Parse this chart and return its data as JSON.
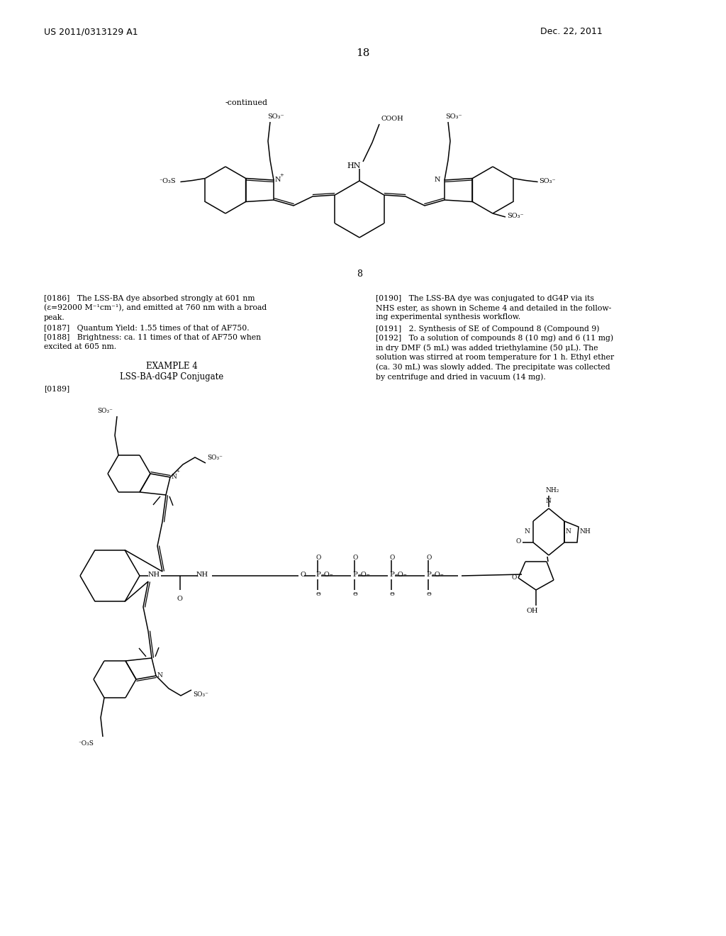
{
  "patent_number": "US 2011/0313129 A1",
  "patent_date": "Dec. 22, 2011",
  "page_number": "18",
  "continued": "-continued",
  "compound8": "8",
  "example_header": "EXAMPLE 4",
  "example_sub": "LSS-BA-dG4P Conjugate",
  "para_189": "[0189]",
  "p186": "[0186]   The LSS-BA dye absorbed strongly at 601 nm\n(ε=92000 M⁻¹cm⁻¹), and emitted at 760 nm with a broad\npeak.",
  "p187": "[0187]   Quantum Yield: 1.55 times of that of AF750.",
  "p188": "[0188]   Brightness: ca. 11 times of that of AF750 when\nexcited at 605 nm.",
  "p190": "[0190]   The LSS-BA dye was conjugated to dG4P via its\nNHS ester, as shown in Scheme 4 and detailed in the follow-\ning experimental synthesis workflow.",
  "p191": "[0191]   2. Synthesis of SE of Compound 8 (Compound 9)",
  "p192": "[0192]   To a solution of compounds 8 (10 mg) and 6 (11 mg)\nin dry DMF (5 mL) was added triethylamine (50 μL). The\nsolution was stirred at room temperature for 1 h. Ethyl ether\n(ca. 30 mL) was slowly added. The precipitate was collected\nby centrifuge and dried in vacuum (14 mg).",
  "bg": "#ffffff",
  "fg": "#000000"
}
